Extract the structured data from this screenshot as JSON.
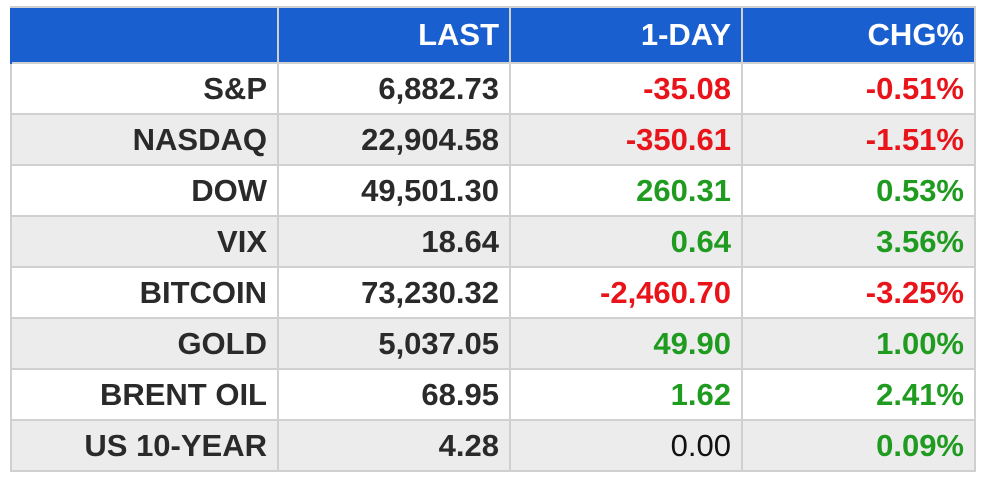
{
  "table": {
    "headers": [
      "",
      "LAST",
      "1-DAY",
      "CHG%"
    ],
    "rows": [
      {
        "name": "S&P",
        "last": "6,882.73",
        "day": "-35.08",
        "pct": "-0.51%",
        "dir": "neg"
      },
      {
        "name": "NASDAQ",
        "last": "22,904.58",
        "day": "-350.61",
        "pct": "-1.51%",
        "dir": "neg"
      },
      {
        "name": "DOW",
        "last": "49,501.30",
        "day": "260.31",
        "pct": "0.53%",
        "dir": "pos"
      },
      {
        "name": "VIX",
        "last": "18.64",
        "day": "0.64",
        "pct": "3.56%",
        "dir": "pos"
      },
      {
        "name": "BITCOIN",
        "last": "73,230.32",
        "day": "-2,460.70",
        "pct": "-3.25%",
        "dir": "neg"
      },
      {
        "name": "GOLD",
        "last": "5,037.05",
        "day": "49.90",
        "pct": "1.00%",
        "dir": "pos"
      },
      {
        "name": "BRENT OIL",
        "last": "68.95",
        "day": "1.62",
        "pct": "2.41%",
        "dir": "pos"
      },
      {
        "name": "US 10-YEAR",
        "last": "4.28",
        "day": "0.00",
        "pct": "0.09%",
        "dir": "flat",
        "pct_dir": "pos"
      }
    ]
  },
  "colors": {
    "header_bg": "#1a5fd0",
    "negative": "#e8141a",
    "positive": "#1f9b1f",
    "row_alt": "#ececec"
  }
}
